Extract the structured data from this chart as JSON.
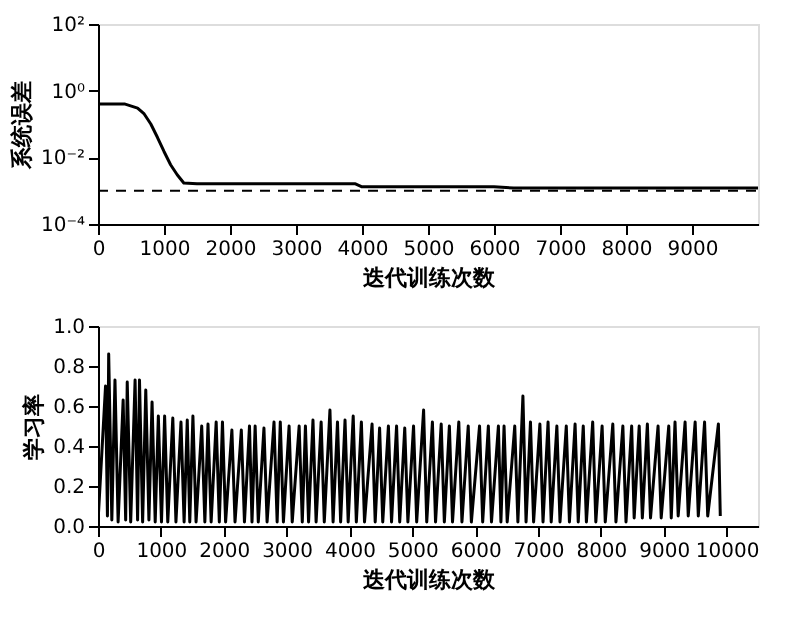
{
  "chart_data": [
    {
      "type": "line",
      "xlabel": "迭代训练次数",
      "ylabel": "系统误差",
      "log": "y",
      "grid": false,
      "marker": "none",
      "line_style": "solid",
      "xlim": [
        0,
        10000
      ],
      "xticks": [
        0,
        1000,
        2000,
        3000,
        4000,
        5000,
        6000,
        7000,
        8000,
        9000
      ],
      "ylim": [
        0.0001,
        100
      ],
      "yticks": [
        {
          "value": 0.0001,
          "label": "10⁻⁴"
        },
        {
          "value": 0.01,
          "label": "10⁻²"
        },
        {
          "value": 1,
          "label": "10⁰"
        },
        {
          "value": 100,
          "label": "10²"
        }
      ],
      "ref_lines": [
        {
          "axis": "y",
          "value": 0.001,
          "line_style": "dashed",
          "color": "#000000"
        }
      ],
      "series": [
        {
          "color": "#000000",
          "x": [
            0,
            400,
            600,
            700,
            800,
            900,
            1000,
            1100,
            1200,
            1300,
            1500,
            2000,
            3000,
            3900,
            4000,
            5000,
            6000,
            6300,
            7000,
            8000,
            9000,
            10000
          ],
          "values": [
            0.4,
            0.4,
            0.3,
            0.2,
            0.1,
            0.04,
            0.015,
            0.006,
            0.003,
            0.0017,
            0.0016,
            0.0016,
            0.0016,
            0.0016,
            0.0013,
            0.0013,
            0.0013,
            0.0012,
            0.0012,
            0.0012,
            0.0012,
            0.0012
          ]
        }
      ]
    },
    {
      "type": "line",
      "xlabel": "迭代训练次数",
      "ylabel": "学习率",
      "grid": false,
      "marker": "none",
      "line_style": "solid",
      "xlim": [
        0,
        10500
      ],
      "xticks": [
        0,
        1000,
        2000,
        3000,
        4000,
        5000,
        6000,
        7000,
        8000,
        9000,
        10000
      ],
      "ylim": [
        0,
        1
      ],
      "yticks": [
        {
          "value": 0,
          "label": "0.0"
        },
        {
          "value": 0.2,
          "label": "0.2"
        },
        {
          "value": 0.4,
          "label": "0.4"
        },
        {
          "value": 0.6,
          "label": "0.6"
        },
        {
          "value": 0.8,
          "label": "0.8"
        },
        {
          "value": 1,
          "label": "1.0"
        }
      ],
      "series": [
        {
          "color": "#000000",
          "x": [
            0,
            120,
            150,
            170,
            220,
            270,
            320,
            400,
            440,
            465,
            520,
            590,
            630,
            660,
            710,
            760,
            810,
            860,
            910,
            960,
            1010,
            1060,
            1110,
            1190,
            1240,
            1320,
            1370,
            1420,
            1460,
            1510,
            1560,
            1650,
            1700,
            1750,
            1800,
            1880,
            1930,
            1980,
            2030,
            2130,
            2180,
            2280,
            2330,
            2410,
            2450,
            2500,
            2550,
            2640,
            2690,
            2800,
            2850,
            2900,
            2950,
            3040,
            3090,
            3200,
            3250,
            3300,
            3350,
            3420,
            3470,
            3550,
            3600,
            3690,
            3740,
            3810,
            3860,
            3930,
            3980,
            4060,
            4110,
            4190,
            4240,
            4360,
            4410,
            4480,
            4530,
            4620,
            4670,
            4750,
            4800,
            4880,
            4930,
            5020,
            5070,
            5180,
            5230,
            5320,
            5370,
            5460,
            5510,
            5590,
            5640,
            5740,
            5790,
            5890,
            5940,
            6070,
            6120,
            6210,
            6260,
            6370,
            6410,
            6460,
            6510,
            6630,
            6680,
            6760,
            6810,
            6880,
            6930,
            7030,
            7080,
            7160,
            7210,
            7300,
            7350,
            7450,
            7500,
            7590,
            7640,
            7720,
            7770,
            7870,
            7920,
            8020,
            8070,
            8190,
            8240,
            8350,
            8400,
            8490,
            8530,
            8610,
            8660,
            8740,
            8790,
            8910,
            8960,
            9080,
            9120,
            9180,
            9230,
            9340,
            9390,
            9500,
            9550,
            9650,
            9700,
            9870,
            9900
          ],
          "values": [
            0.02,
            0.7,
            0.05,
            0.86,
            0.03,
            0.73,
            0.02,
            0.63,
            0.03,
            0.72,
            0.02,
            0.73,
            0.03,
            0.73,
            0.02,
            0.68,
            0.03,
            0.62,
            0.02,
            0.55,
            0.02,
            0.55,
            0.02,
            0.54,
            0.02,
            0.52,
            0.02,
            0.53,
            0.02,
            0.55,
            0.02,
            0.5,
            0.02,
            0.51,
            0.02,
            0.52,
            0.02,
            0.52,
            0.02,
            0.48,
            0.02,
            0.48,
            0.02,
            0.5,
            0.02,
            0.5,
            0.02,
            0.49,
            0.02,
            0.52,
            0.02,
            0.52,
            0.02,
            0.5,
            0.02,
            0.5,
            0.02,
            0.5,
            0.02,
            0.53,
            0.02,
            0.52,
            0.02,
            0.58,
            0.02,
            0.52,
            0.02,
            0.53,
            0.02,
            0.55,
            0.02,
            0.52,
            0.02,
            0.51,
            0.02,
            0.49,
            0.02,
            0.5,
            0.02,
            0.5,
            0.02,
            0.49,
            0.02,
            0.5,
            0.02,
            0.58,
            0.02,
            0.52,
            0.02,
            0.51,
            0.02,
            0.5,
            0.02,
            0.52,
            0.02,
            0.5,
            0.02,
            0.5,
            0.02,
            0.5,
            0.02,
            0.5,
            0.02,
            0.5,
            0.02,
            0.5,
            0.02,
            0.65,
            0.02,
            0.52,
            0.02,
            0.51,
            0.02,
            0.52,
            0.02,
            0.5,
            0.02,
            0.5,
            0.02,
            0.51,
            0.02,
            0.5,
            0.02,
            0.52,
            0.02,
            0.5,
            0.02,
            0.51,
            0.02,
            0.5,
            0.02,
            0.5,
            0.04,
            0.5,
            0.04,
            0.51,
            0.04,
            0.5,
            0.04,
            0.5,
            0.04,
            0.52,
            0.05,
            0.52,
            0.05,
            0.52,
            0.05,
            0.52,
            0.05,
            0.51,
            0.05
          ]
        }
      ]
    }
  ]
}
